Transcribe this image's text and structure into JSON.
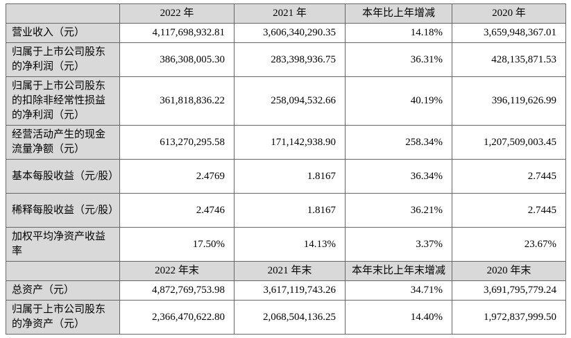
{
  "colors": {
    "border": "#666666",
    "header_bg": "#d9d9d9",
    "label_bg": "#d9d9d9",
    "cell_bg": "#ffffff",
    "text": "#000000",
    "page_bg": "#ffffff"
  },
  "table": {
    "sections": [
      {
        "header": [
          "",
          "2022 年",
          "2021 年",
          "本年比上年增减",
          "2020 年"
        ],
        "rows": [
          {
            "label": "营业收入（元）",
            "values": [
              "4,117,698,932.81",
              "3,606,340,290.35",
              "14.18%",
              "3,659,948,367.01"
            ],
            "lines": "one-line"
          },
          {
            "label": "归属于上市公司股东的净利润（元）",
            "values": [
              "386,308,005.30",
              "283,398,936.75",
              "36.31%",
              "428,135,871.53"
            ],
            "lines": "two-line"
          },
          {
            "label": "归属于上市公司股东的扣除非经常性损益的净利润（元）",
            "values": [
              "361,818,836.22",
              "258,094,532.66",
              "40.19%",
              "396,119,626.99"
            ],
            "lines": "three-line"
          },
          {
            "label": "经营活动产生的现金流量净额（元）",
            "values": [
              "613,270,295.58",
              "171,142,938.90",
              "258.34%",
              "1,207,509,003.45"
            ],
            "lines": "two-line"
          },
          {
            "label": "基本每股收益（元/股）",
            "values": [
              "2.4769",
              "1.8167",
              "36.34%",
              "2.7445"
            ],
            "lines": "two-line"
          },
          {
            "label": "稀释每股收益（元/股）",
            "values": [
              "2.4746",
              "1.8167",
              "36.21%",
              "2.7445"
            ],
            "lines": "two-line"
          },
          {
            "label": "加权平均净资产收益率",
            "values": [
              "17.50%",
              "14.13%",
              "3.37%",
              "23.67%"
            ],
            "lines": "two-line"
          }
        ]
      },
      {
        "header": [
          "",
          "2022 年末",
          "2021 年末",
          "本年末比上年末增减",
          "2020 年末"
        ],
        "rows": [
          {
            "label": "总资产（元）",
            "values": [
              "4,872,769,753.98",
              "3,617,119,743.26",
              "34.71%",
              "3,691,795,779.24"
            ],
            "lines": "one-line"
          },
          {
            "label": "归属于上市公司股东的净资产（元）",
            "values": [
              "2,366,470,622.80",
              "2,068,504,136.25",
              "14.40%",
              "1,972,837,999.50"
            ],
            "lines": "two-line"
          }
        ]
      }
    ]
  }
}
